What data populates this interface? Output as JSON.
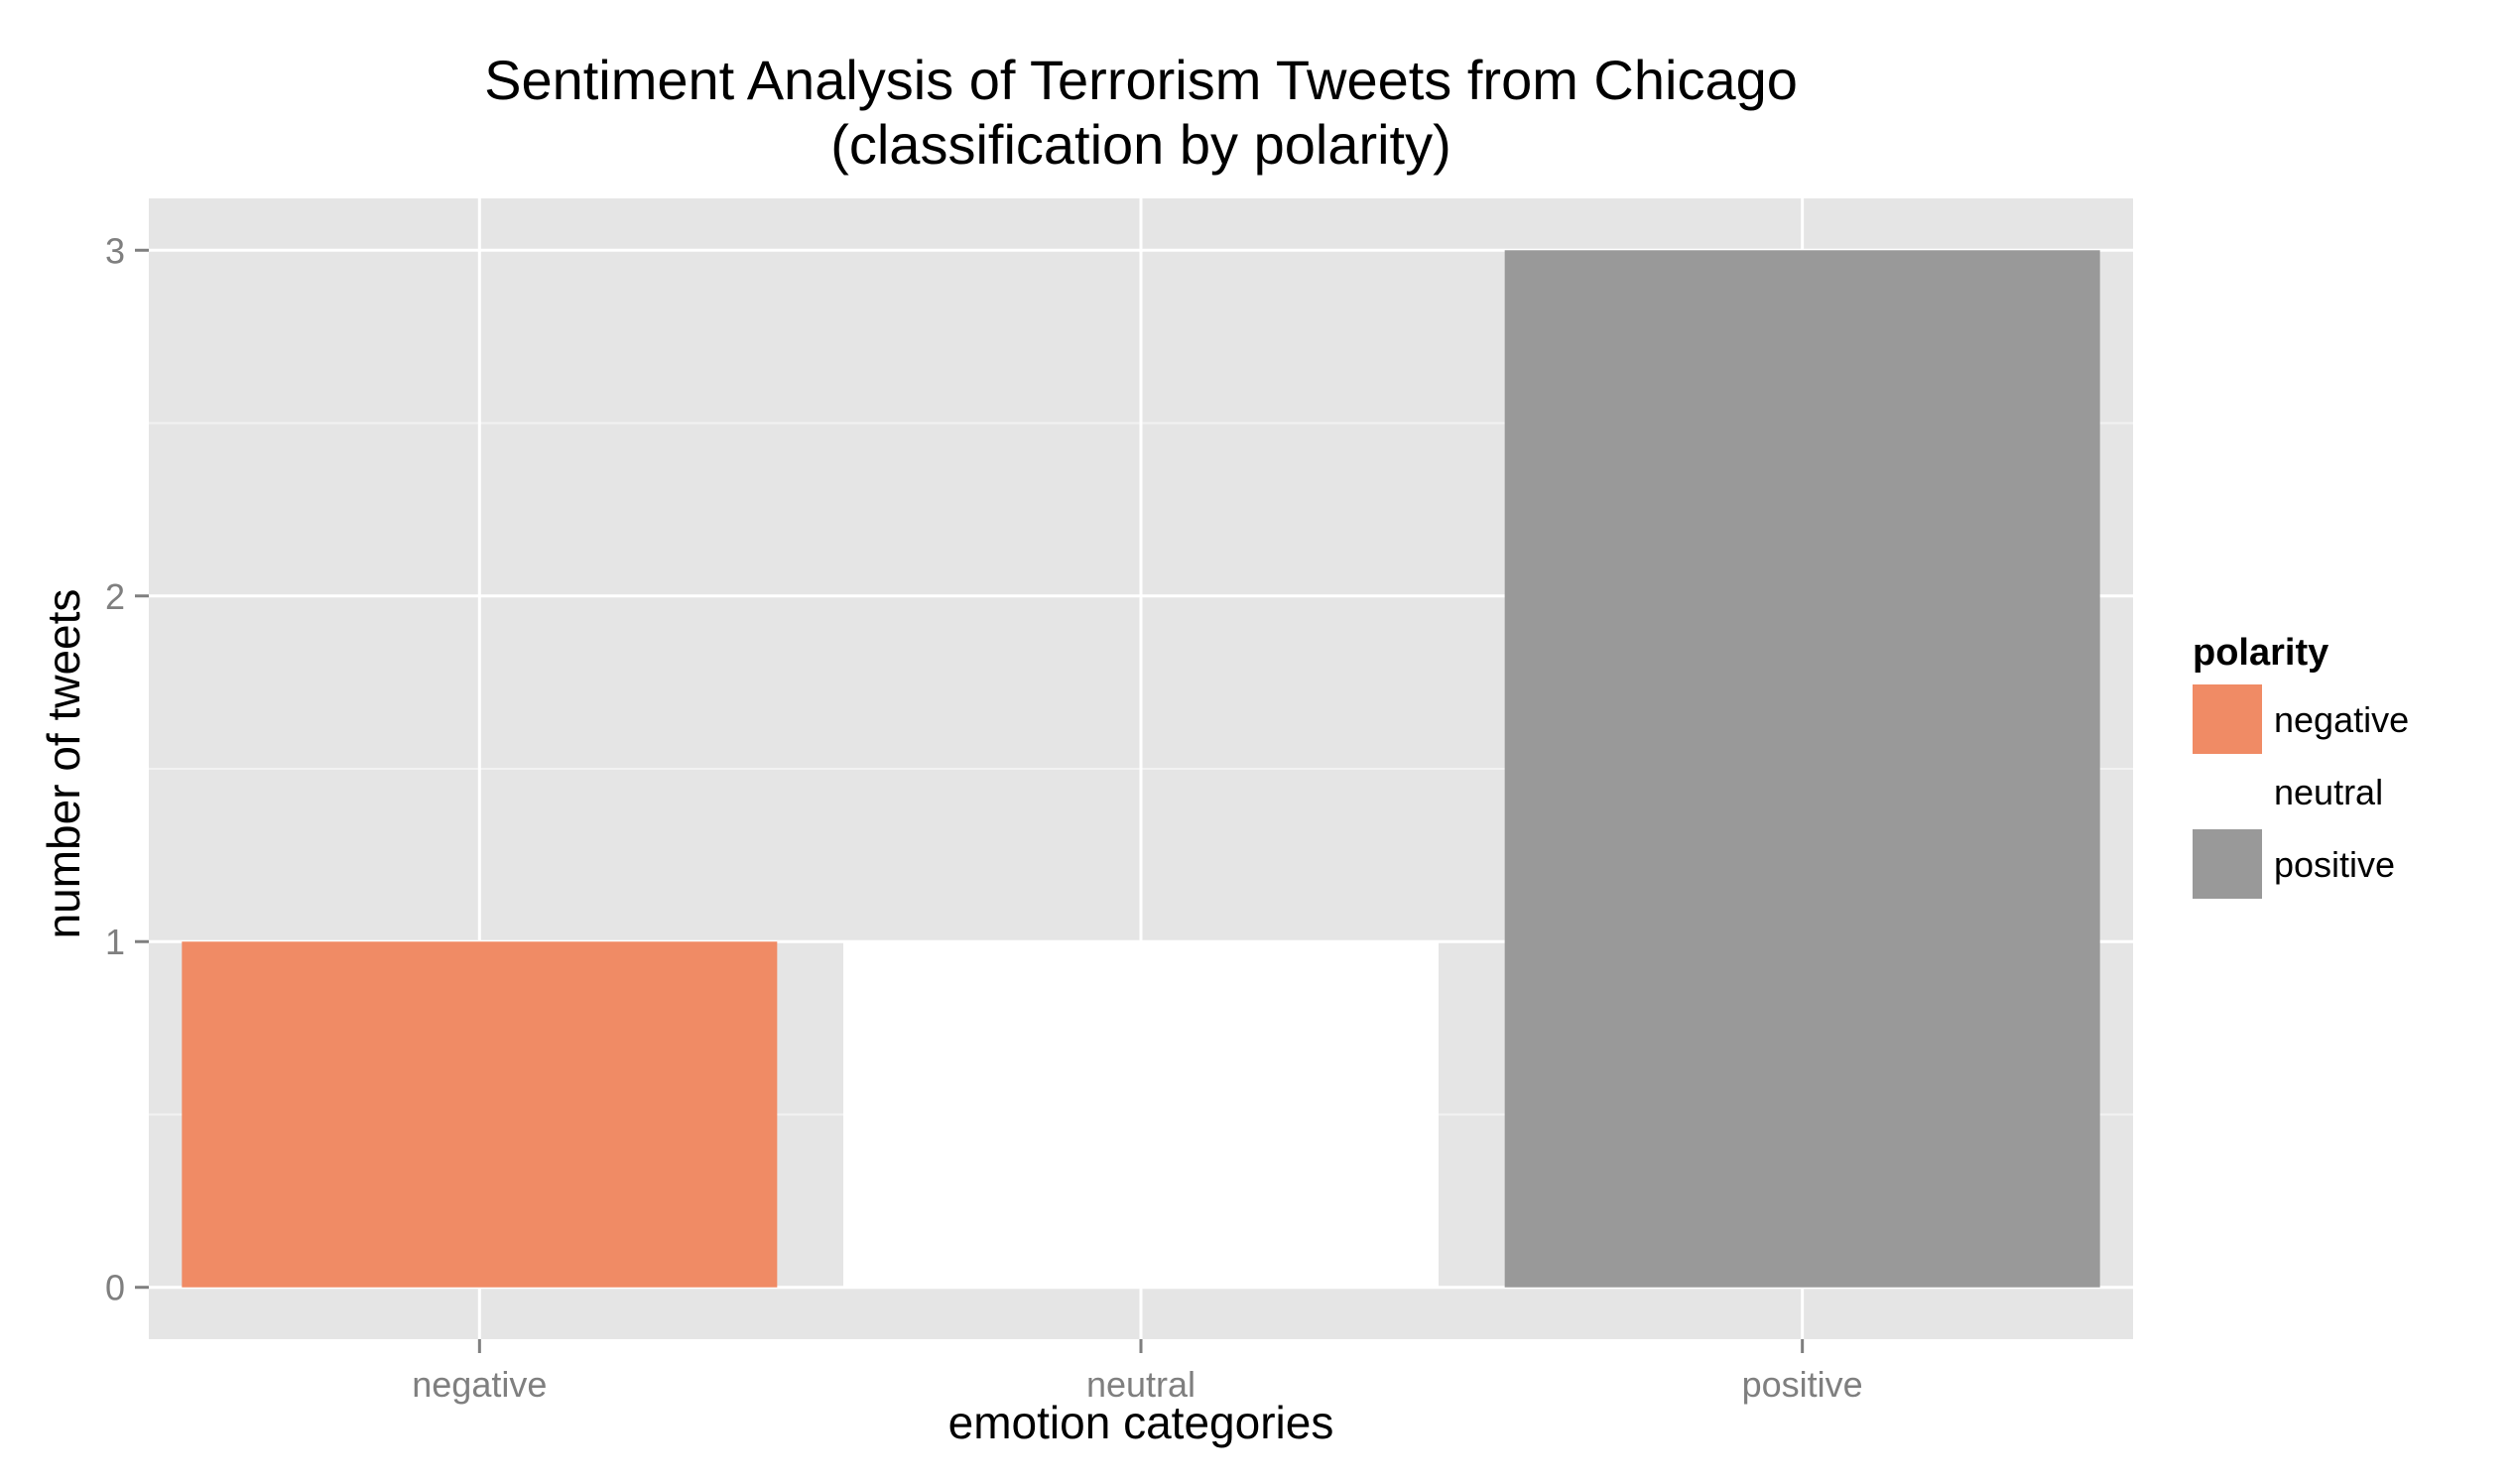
{
  "chart_data": {
    "type": "bar",
    "title": "Sentiment Analysis of Terrorism Tweets from Chicago",
    "subtitle": "(classification by polarity)",
    "xlabel": "emotion categories",
    "ylabel": "number of tweets",
    "categories": [
      "negative",
      "neutral",
      "positive"
    ],
    "values": [
      1,
      1,
      3
    ],
    "colors": [
      "#F08B65",
      "#FFFFFF",
      "#999999"
    ],
    "ylim": [
      -0.15,
      3.15
    ],
    "yticks": [
      0,
      1,
      2,
      3
    ],
    "grid": true,
    "legend": {
      "title": "polarity",
      "position": "right",
      "entries": [
        {
          "label": "negative",
          "color": "#F08B65"
        },
        {
          "label": "neutral",
          "color": "#FFFFFF"
        },
        {
          "label": "positive",
          "color": "#999999"
        }
      ]
    }
  }
}
